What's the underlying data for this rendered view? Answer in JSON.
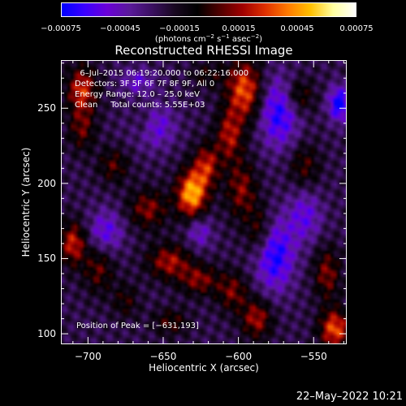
{
  "chart_data": {
    "type": "heatmap",
    "title": "Reconstructed RHESSI Image",
    "xlabel": "Heliocentric X (arcsec)",
    "ylabel": "Heliocentric Y (arcsec)",
    "xlim": [
      -718,
      -528
    ],
    "ylim": [
      93,
      282
    ],
    "x_ticks": [
      -700,
      -650,
      -600,
      -550
    ],
    "x_tick_labels": [
      "−700",
      "−650",
      "−600",
      "−550"
    ],
    "y_ticks": [
      100,
      150,
      200,
      250
    ],
    "y_tick_labels": [
      "100",
      "150",
      "200",
      "250"
    ],
    "colorbar": {
      "range": [
        -0.00075,
        0.00075
      ],
      "ticks": [
        -0.00075,
        -0.00045,
        -0.00015,
        0.00015,
        0.00045,
        0.00075
      ],
      "tick_labels": [
        "−0.00075",
        "−0.00045",
        "−0.00015",
        "0.00015",
        "0.00045",
        "0.00075"
      ],
      "units_prefix": "(photons cm",
      "units_sup1": "−2",
      "units_mid1": " s",
      "units_sup2": "−1",
      "units_mid2": " asec",
      "units_sup3": "−2",
      "units_suffix": ")",
      "colormap": [
        "#0000ff",
        "#3a00ff",
        "#6a00d8",
        "#5a1a9a",
        "#3a1060",
        "#180820",
        "#000000",
        "#500000",
        "#a00000",
        "#e03000",
        "#ff7a00",
        "#ffc000",
        "#ffffa0",
        "#ffffff"
      ]
    },
    "info_lines": [
      "  6–Jul–2015 06:19:20.000 to 06:22:16.000",
      "Detectors: 3F 5F 6F 7F 8F 9F, All 0",
      "Energy Range: 12.0 – 25.0 keV",
      "Clean     Total counts: 5.55E+03"
    ],
    "peak_label": "Position of Peak = [−631,193]",
    "peak_position": [
      -631,
      193
    ],
    "peak_value": 0.00075,
    "intensity_features": [
      {
        "x": -631,
        "y": 193,
        "value": 0.00075,
        "sx": 7,
        "sy": 11
      },
      {
        "x": -621,
        "y": 212,
        "value": 0.00045,
        "sx": 6,
        "sy": 10
      },
      {
        "x": -596,
        "y": 262,
        "value": 0.00058,
        "sx": 8,
        "sy": 14
      },
      {
        "x": -606,
        "y": 232,
        "value": 0.00042,
        "sx": 6,
        "sy": 12
      },
      {
        "x": -598,
        "y": 196,
        "value": 0.00036,
        "sx": 7,
        "sy": 14
      },
      {
        "x": -586,
        "y": 168,
        "value": 0.0003,
        "sx": 6,
        "sy": 12
      },
      {
        "x": -704,
        "y": 262,
        "value": 0.0005,
        "sx": 7,
        "sy": 11
      },
      {
        "x": -704,
        "y": 236,
        "value": 0.0003,
        "sx": 6,
        "sy": 10
      },
      {
        "x": -710,
        "y": 160,
        "value": 0.00048,
        "sx": 6,
        "sy": 10
      },
      {
        "x": -693,
        "y": 143,
        "value": 0.0003,
        "sx": 7,
        "sy": 11
      },
      {
        "x": -660,
        "y": 183,
        "value": 0.00036,
        "sx": 9,
        "sy": 9
      },
      {
        "x": -646,
        "y": 148,
        "value": 0.00042,
        "sx": 10,
        "sy": 8
      },
      {
        "x": -626,
        "y": 136,
        "value": 0.00036,
        "sx": 9,
        "sy": 7
      },
      {
        "x": -604,
        "y": 128,
        "value": 0.00034,
        "sx": 7,
        "sy": 9
      },
      {
        "x": -588,
        "y": 110,
        "value": 0.00042,
        "sx": 7,
        "sy": 9
      },
      {
        "x": -536,
        "y": 103,
        "value": 0.00058,
        "sx": 7,
        "sy": 9
      },
      {
        "x": -541,
        "y": 140,
        "value": 0.00036,
        "sx": 6,
        "sy": 12
      },
      {
        "x": -560,
        "y": 258,
        "value": 0.0003,
        "sx": 7,
        "sy": 8
      },
      {
        "x": -556,
        "y": 212,
        "value": 0.00026,
        "sx": 7,
        "sy": 10
      },
      {
        "x": -683,
        "y": 212,
        "value": 0.00028,
        "sx": 7,
        "sy": 8
      },
      {
        "x": -663,
        "y": 240,
        "value": 0.00024,
        "sx": 6,
        "sy": 8
      },
      {
        "x": -645,
        "y": 108,
        "value": 0.00026,
        "sx": 8,
        "sy": 6
      },
      {
        "x": -620,
        "y": 272,
        "value": 0.0002,
        "sx": 8,
        "sy": 6
      },
      {
        "x": -675,
        "y": 122,
        "value": 0.00022,
        "sx": 6,
        "sy": 8
      },
      {
        "x": -573,
        "y": 247,
        "value": -0.00045,
        "sx": 9,
        "sy": 16
      },
      {
        "x": -576,
        "y": 152,
        "value": -0.00048,
        "sx": 9,
        "sy": 16
      },
      {
        "x": -657,
        "y": 238,
        "value": -0.00036,
        "sx": 10,
        "sy": 10
      },
      {
        "x": -688,
        "y": 168,
        "value": -0.00032,
        "sx": 8,
        "sy": 10
      },
      {
        "x": -533,
        "y": 253,
        "value": -0.00052,
        "sx": 5,
        "sy": 8
      },
      {
        "x": -556,
        "y": 178,
        "value": -0.0003,
        "sx": 8,
        "sy": 12
      },
      {
        "x": -667,
        "y": 268,
        "value": -0.00026,
        "sx": 8,
        "sy": 6
      },
      {
        "x": -626,
        "y": 168,
        "value": -0.00028,
        "sx": 6,
        "sy": 8
      }
    ]
  },
  "timestamp": "22–May–2022 10:21"
}
